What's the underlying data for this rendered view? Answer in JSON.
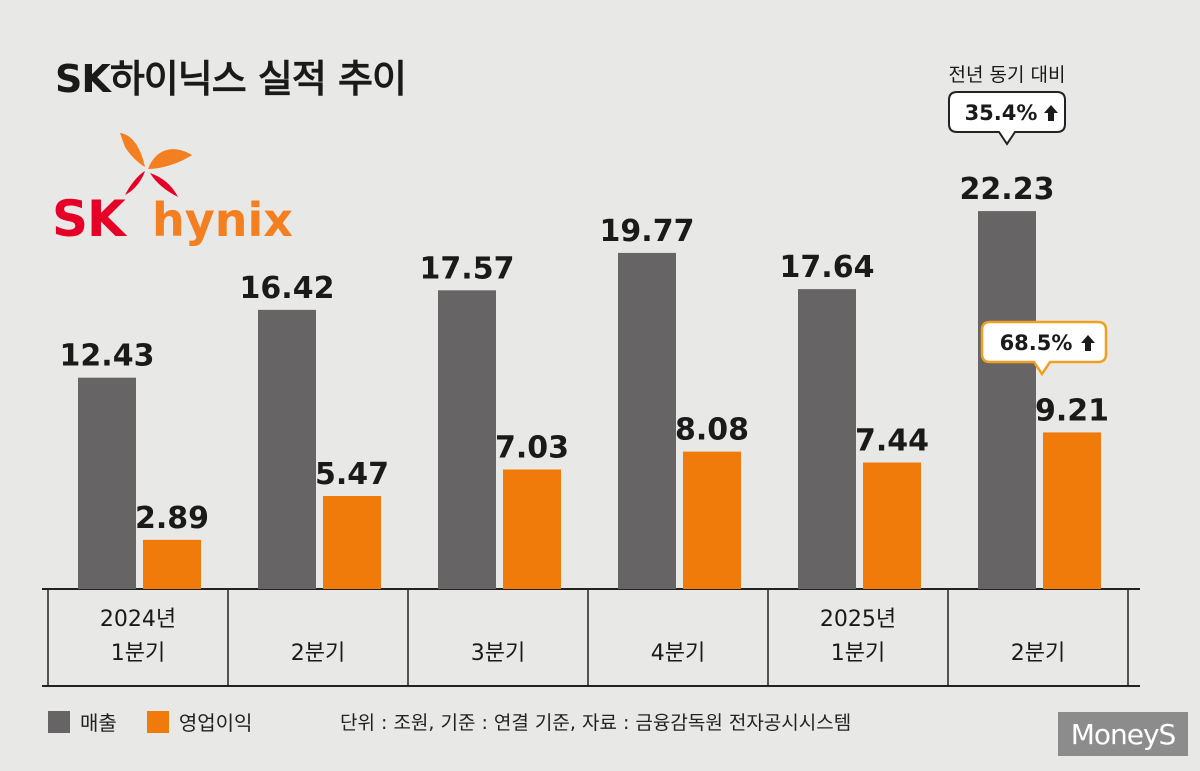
{
  "title": "SK하이닉스 실적 추이",
  "logo": {
    "sk": "SK",
    "hynix": "hynix"
  },
  "chart_data": {
    "type": "bar",
    "categories": [
      [
        "2024년",
        "1분기"
      ],
      [
        "2분기"
      ],
      [
        "3분기"
      ],
      [
        "4분기"
      ],
      [
        "2025년",
        "1분기"
      ],
      [
        "2분기"
      ]
    ],
    "series": [
      {
        "name": "매출",
        "color": "#666465",
        "values": [
          12.43,
          16.42,
          17.57,
          19.77,
          17.64,
          22.23
        ],
        "labels": [
          "12.43",
          "16.42",
          "17.57",
          "19.77",
          "17.64",
          "22.23"
        ]
      },
      {
        "name": "영업이익",
        "color": "#f07a0a",
        "values": [
          2.89,
          5.47,
          7.03,
          8.08,
          7.44,
          9.21
        ],
        "labels": [
          "2.89",
          "5.47",
          "7.03",
          "8.08",
          "7.44",
          "9.21"
        ]
      }
    ],
    "annotations": {
      "yoy_caption": "전년 동기 대비",
      "revenue_yoy": "35.4%",
      "profit_yoy": "68.5%"
    }
  },
  "legend": {
    "revenue": "매출",
    "profit": "영업이익"
  },
  "note": "단위 : 조원, 기준 : 연결 기준, 자료 : 금융감독원 전자공시시스템",
  "watermark": "MoneyS"
}
